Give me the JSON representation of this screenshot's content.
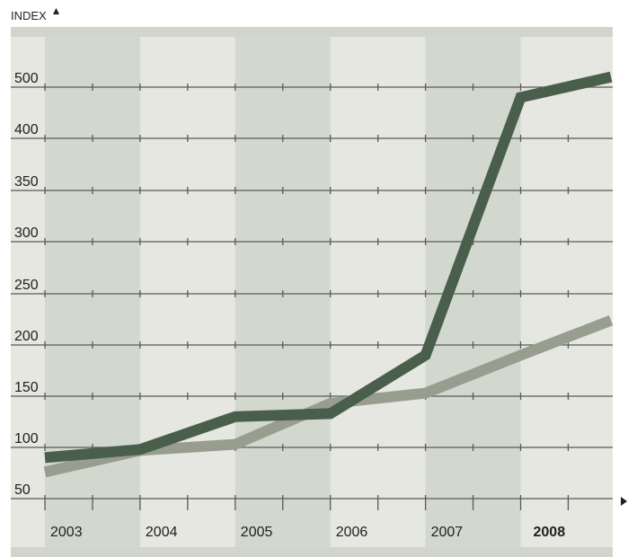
{
  "chart_data": {
    "type": "line",
    "title": "",
    "ylabel": "INDEX",
    "xlabel": "",
    "y_tick_labels": [
      "50",
      "100",
      "150",
      "200",
      "250",
      "300",
      "350",
      "400",
      "500"
    ],
    "x_tick_labels": [
      "2003",
      "2004",
      "2005",
      "2006",
      "2007",
      "2008"
    ],
    "highlighted_category": "2008",
    "ylim": [
      50,
      500
    ],
    "grid": true,
    "shaded_columns": [
      "2003",
      "2005",
      "2007"
    ],
    "x": [
      2003.0,
      2004.0,
      2005.0,
      2006.0,
      2007.0,
      2008.0,
      2008.95
    ],
    "series": [
      {
        "color": "#4a5e4c",
        "values": [
          90,
          98,
          130,
          133,
          190,
          480,
          520
        ]
      },
      {
        "color": "#979e90",
        "values": [
          76,
          97,
          103,
          143,
          153,
          190,
          224
        ]
      }
    ]
  },
  "colors": {
    "panel_bg": "#e5e7e0",
    "shaded_column": "#d3d8cf",
    "top_band": "#d1d5cc",
    "grid_line": "#5a5a5a"
  }
}
